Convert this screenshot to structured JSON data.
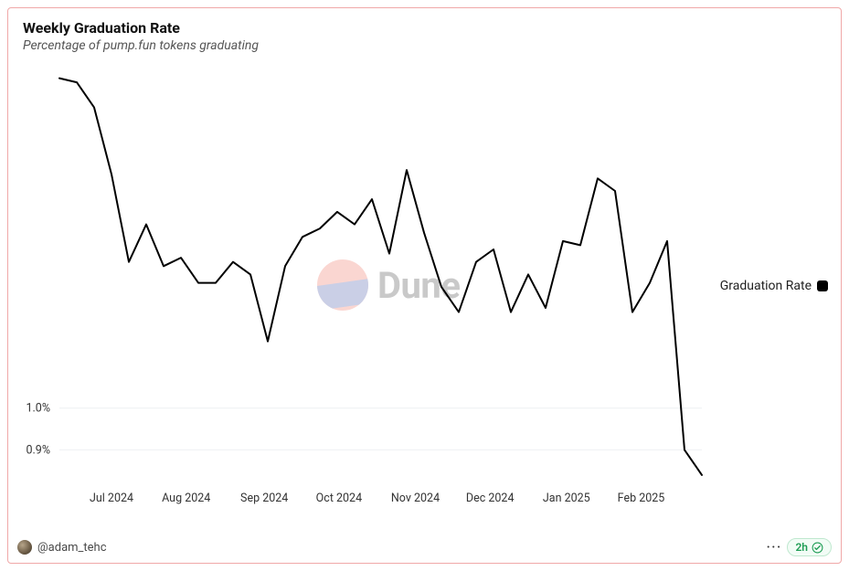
{
  "card": {
    "border_color": "#f0a8a8",
    "background": "#ffffff"
  },
  "header": {
    "title": "Weekly Graduation Rate",
    "subtitle": "Percentage of pump.fun tokens graduating",
    "title_fontsize": 16,
    "subtitle_fontsize": 14
  },
  "watermark": {
    "text": "Dune",
    "logo_top_color": "#f5a59a",
    "logo_bottom_color": "#8b96c9",
    "opacity": 0.45
  },
  "legend": {
    "label": "Graduation Rate",
    "swatch_color": "#000000"
  },
  "footer": {
    "author_handle": "@adam_tehc",
    "more_label": "…",
    "freshness_label": "2h",
    "freshness_color": "#1f9d55"
  },
  "chart": {
    "type": "line",
    "series_name": "Graduation Rate",
    "line_color": "#000000",
    "line_width": 2,
    "background_color": "#ffffff",
    "grid_color": "#eef0f2",
    "y_axis": {
      "label": "",
      "ticks": [
        {
          "value": 0.9,
          "label": "0.9%"
        },
        {
          "value": 1.0,
          "label": "1.0%"
        }
      ],
      "ylim_min": 0.82,
      "ylim_max": 1.8,
      "tick_fontsize": 12.5
    },
    "x_axis": {
      "tick_fontsize": 12.5,
      "ticks": [
        "Jul 2024",
        "Aug 2024",
        "Sep 2024",
        "Oct 2024",
        "Nov 2024",
        "Dec 2024",
        "Jan 2025",
        "Feb 2025"
      ]
    },
    "x_labels": [
      "2024-06-10",
      "2024-06-17",
      "2024-06-24",
      "2024-07-01",
      "2024-07-08",
      "2024-07-15",
      "2024-07-22",
      "2024-07-29",
      "2024-08-05",
      "2024-08-12",
      "2024-08-19",
      "2024-08-26",
      "2024-09-02",
      "2024-09-09",
      "2024-09-16",
      "2024-09-23",
      "2024-09-30",
      "2024-10-07",
      "2024-10-14",
      "2024-10-21",
      "2024-10-28",
      "2024-11-04",
      "2024-11-11",
      "2024-11-18",
      "2024-11-25",
      "2024-12-02",
      "2024-12-09",
      "2024-12-16",
      "2024-12-23",
      "2024-12-30",
      "2025-01-06",
      "2025-01-13",
      "2025-01-20",
      "2025-01-27",
      "2025-02-03",
      "2025-02-10",
      "2025-02-17",
      "2025-02-24"
    ],
    "y_values": [
      1.79,
      1.78,
      1.72,
      1.56,
      1.35,
      1.44,
      1.34,
      1.36,
      1.3,
      1.3,
      1.35,
      1.32,
      1.16,
      1.34,
      1.41,
      1.43,
      1.47,
      1.44,
      1.5,
      1.37,
      1.57,
      1.42,
      1.29,
      1.23,
      1.35,
      1.38,
      1.23,
      1.32,
      1.24,
      1.4,
      1.39,
      1.55,
      1.52,
      1.23,
      1.3,
      1.4,
      0.9,
      0.84
    ]
  }
}
